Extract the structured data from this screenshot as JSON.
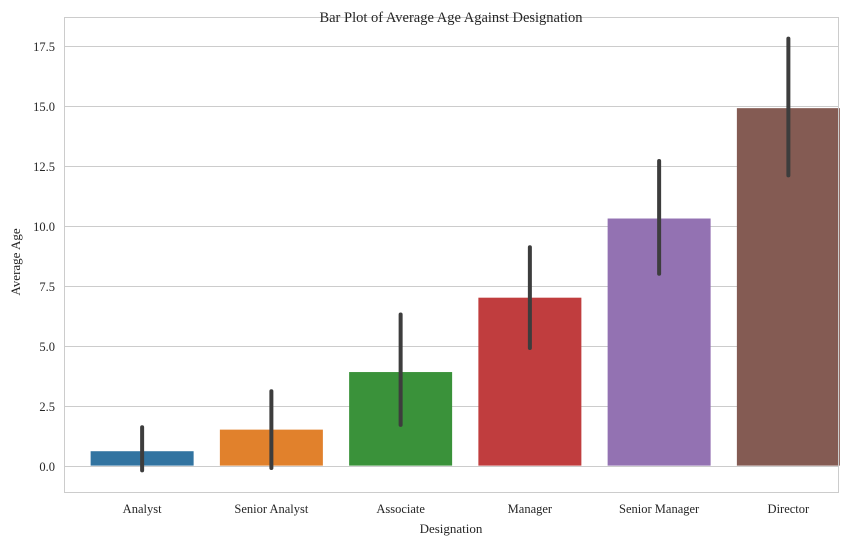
{
  "chart_data": {
    "type": "bar",
    "title": "Bar Plot of Average Age Against Designation",
    "xlabel": "Designation",
    "ylabel": "Average Age",
    "categories": [
      "Analyst",
      "Senior Analyst",
      "Associate",
      "Manager",
      "Senior Manager",
      "Director"
    ],
    "values": [
      0.6,
      1.5,
      3.9,
      7.0,
      10.3,
      14.9
    ],
    "error_low": [
      -0.2,
      -0.1,
      1.7,
      4.9,
      8.0,
      12.1
    ],
    "error_high": [
      1.6,
      3.1,
      6.3,
      9.1,
      12.7,
      17.8
    ],
    "colors": [
      "#3274a1",
      "#e1812c",
      "#3a923a",
      "#c03d3e",
      "#9372b2",
      "#845b53"
    ],
    "ylim": [
      -1.1,
      18.7
    ],
    "yticks": [
      0.0,
      2.5,
      5.0,
      7.5,
      10.0,
      12.5,
      15.0,
      17.5
    ],
    "ytick_labels": [
      "0.0",
      "2.5",
      "5.0",
      "7.5",
      "10.0",
      "12.5",
      "15.0",
      "17.5"
    ],
    "grid": true,
    "error_color": "#3d3d3d"
  }
}
